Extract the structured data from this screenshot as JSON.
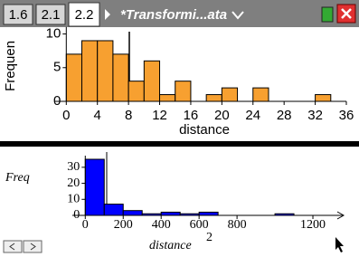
{
  "tabs": [
    "1.6",
    "2.1",
    "2.2"
  ],
  "document_title": "*Transformi...ata",
  "chart_data": [
    {
      "type": "histogram",
      "xlabel": "distance",
      "ylabel": "Frequen",
      "bins": [
        0,
        2,
        4,
        6,
        8,
        10,
        12,
        14,
        16,
        18,
        20,
        22,
        24,
        26,
        28,
        30,
        32,
        34
      ],
      "values": [
        7,
        9,
        9,
        7,
        3,
        6,
        1,
        3,
        0,
        1,
        2,
        0,
        2,
        0,
        0,
        0,
        1
      ],
      "color": "#f7a030",
      "xlim": [
        -0.5,
        36
      ],
      "ylim": [
        0,
        10.5
      ],
      "xticks": [
        0,
        4,
        8,
        12,
        16,
        20,
        24,
        28,
        32,
        36
      ],
      "yticks": [
        0,
        5,
        10
      ]
    },
    {
      "type": "histogram",
      "xlabel": "distance",
      "xlabel_superscript": "2",
      "ylabel": "Freq",
      "bins": [
        0,
        100,
        200,
        300,
        400,
        500,
        600,
        700,
        800,
        900,
        1000,
        1100
      ],
      "values": [
        35,
        7,
        3,
        1,
        2,
        1,
        2,
        0,
        0,
        0,
        1
      ],
      "color": "#0000ff",
      "xlim": [
        -30,
        1300
      ],
      "ylim": [
        0,
        35
      ],
      "xticks": [
        0,
        200,
        400,
        600,
        800,
        1200
      ],
      "yticks": [
        0,
        10,
        20,
        30
      ]
    }
  ]
}
